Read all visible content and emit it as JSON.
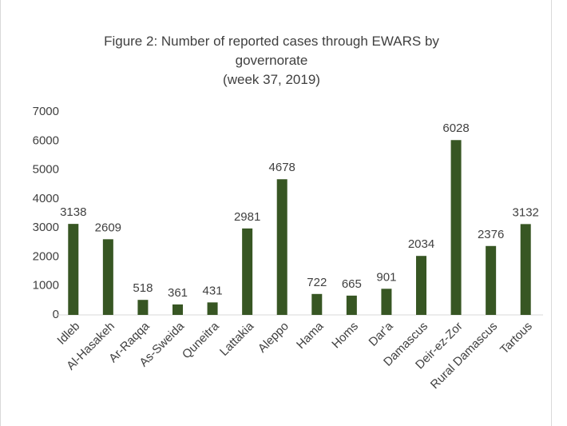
{
  "chart_data": {
    "type": "bar",
    "title": "Figure 2: Number of reported cases through EWARS by governorate",
    "subtitle": "(week 37, 2019)",
    "categories": [
      "Idleb",
      "Al-Hasakeh",
      "Ar-Raqqa",
      "As-Sweida",
      "Quneitra",
      "Lattakia",
      "Aleppo",
      "Hama",
      "Homs",
      "Dar'a",
      "Damascus",
      "Deir-ez-Zor",
      "Rural Damascus",
      "Tartous"
    ],
    "values": [
      3138,
      2609,
      518,
      361,
      431,
      2981,
      4678,
      722,
      665,
      901,
      2034,
      6028,
      2376,
      3132
    ],
    "color": "#375623",
    "ylim": [
      0,
      7000
    ],
    "yticks": [
      0,
      1000,
      2000,
      3000,
      4000,
      5000,
      6000,
      7000
    ],
    "grid": false
  }
}
